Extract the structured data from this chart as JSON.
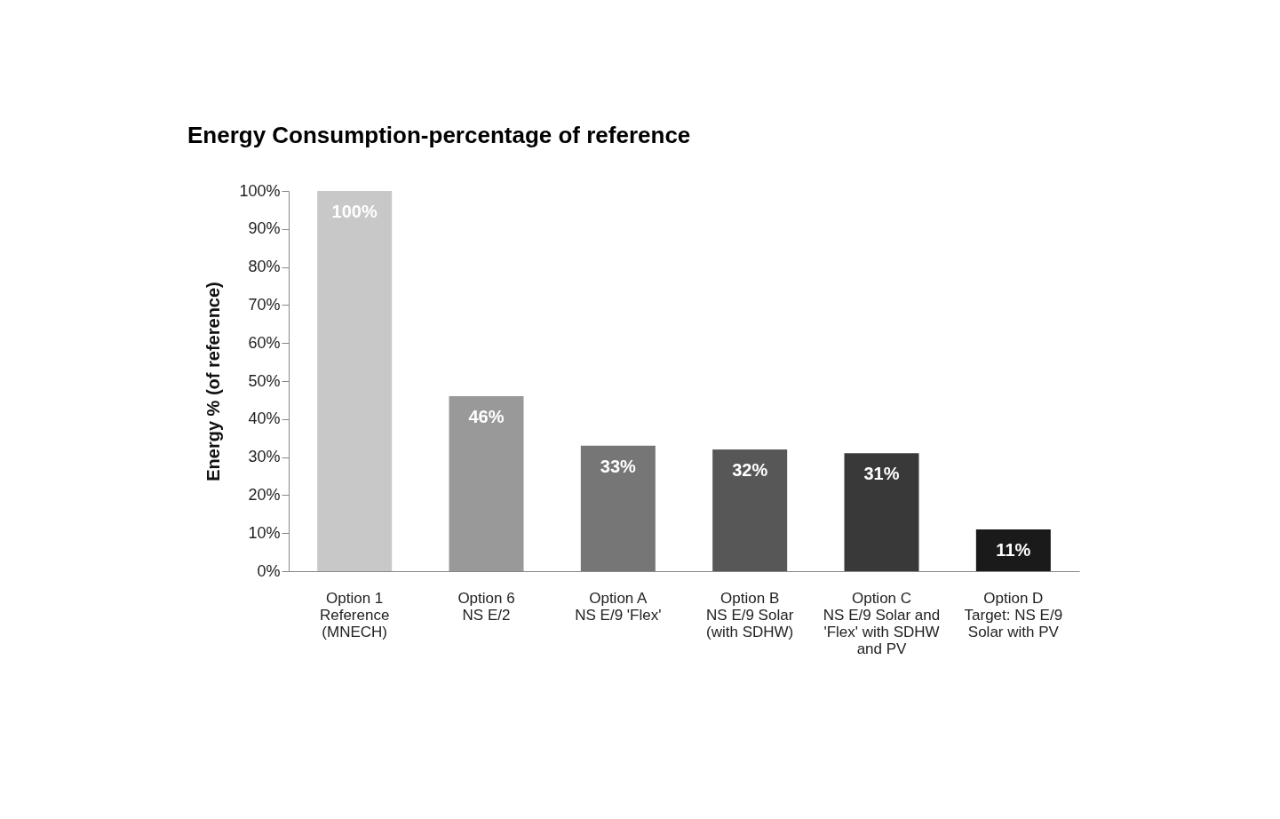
{
  "chart_data": {
    "type": "bar",
    "title": "Energy Consumption-percentage of reference",
    "ylabel": "Energy % (of reference)",
    "categories": [
      "Option 1 Reference (MNECH)",
      "Option 6 NS E/2",
      "Option A NS E/9 'Flex'",
      "Option B NS E/9 Solar (with SDHW)",
      "Option C NS E/9 Solar and 'Flex' with SDHW and PV",
      "Option D Target: NS E/9 Solar with PV"
    ],
    "values": [
      100,
      46,
      33,
      32,
      31,
      11
    ],
    "colors": [
      "#c8c8c8",
      "#999999",
      "#767676",
      "#575757",
      "#393939",
      "#1a1a1a"
    ],
    "value_labels": [
      "100%",
      "46%",
      "33%",
      "32%",
      "31%",
      "11%"
    ],
    "ylim": [
      0,
      100
    ],
    "yticks": [
      {
        "value": 0,
        "label": "0%"
      },
      {
        "value": 10,
        "label": "10%"
      },
      {
        "value": 20,
        "label": "20%"
      },
      {
        "value": 30,
        "label": "30%"
      },
      {
        "value": 40,
        "label": "40%"
      },
      {
        "value": 50,
        "label": "50%"
      },
      {
        "value": 60,
        "label": "60%"
      },
      {
        "value": 70,
        "label": "70%"
      },
      {
        "value": 80,
        "label": "80%"
      },
      {
        "value": 90,
        "label": "90%"
      },
      {
        "value": 100,
        "label": "100%"
      }
    ],
    "grid": false
  }
}
